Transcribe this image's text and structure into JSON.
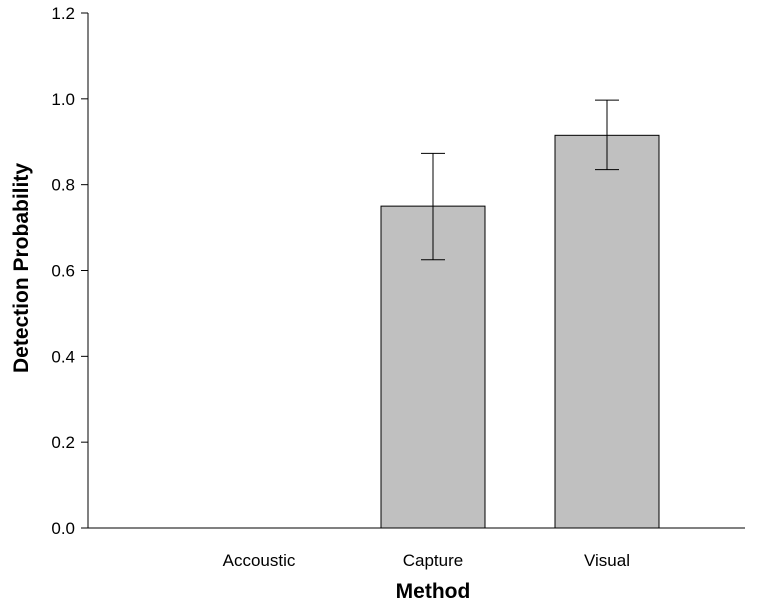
{
  "chart_data": {
    "type": "bar",
    "categories": [
      "Accoustic",
      "Capture",
      "Visual"
    ],
    "values": [
      0.0,
      0.75,
      0.915
    ],
    "error_bars": [
      {
        "low": 0.0,
        "high": 0.0
      },
      {
        "low": 0.625,
        "high": 0.873
      },
      {
        "low": 0.835,
        "high": 0.997
      }
    ],
    "xlabel": "Method",
    "ylabel": "Detection Probability",
    "ylim": [
      0.0,
      1.2
    ],
    "yticks": [
      "0.0",
      "0.2",
      "0.4",
      "0.6",
      "0.8",
      "1.0",
      "1.2"
    ],
    "grid": false,
    "bar_color": "#c0c0c0",
    "edge_color": "#000000"
  }
}
